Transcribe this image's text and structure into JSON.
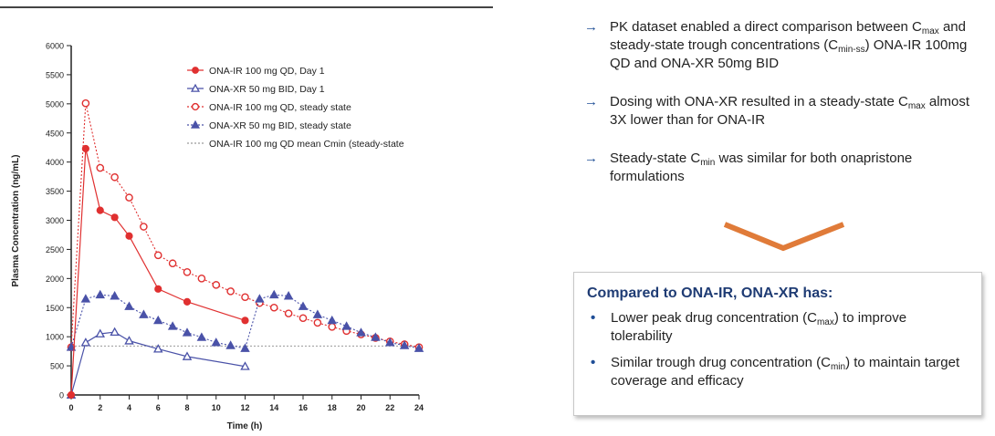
{
  "chart_data": {
    "type": "line",
    "xlabel": "Time (h)",
    "ylabel": "Plasma Concentration (ng/mL)",
    "xlim": [
      0,
      24
    ],
    "ylim": [
      0,
      6000
    ],
    "xticks": [
      "0",
      "2",
      "4",
      "6",
      "8",
      "10",
      "12",
      "14",
      "16",
      "18",
      "20",
      "22",
      "24"
    ],
    "yticks": [
      "0",
      "500",
      "1000",
      "1500",
      "2000",
      "2500",
      "3000",
      "3500",
      "4000",
      "4500",
      "5000",
      "5500",
      "6000"
    ],
    "grid": false,
    "legend_position": "top-right",
    "series": [
      {
        "name": "ONA-IR 100 mg QD, Day 1",
        "color": "#e03030",
        "marker": "filled-circle",
        "line": "solid",
        "x": [
          0,
          1,
          2,
          3,
          4,
          6,
          8,
          12
        ],
        "y": [
          0,
          4230,
          3170,
          3050,
          2730,
          1820,
          1600,
          1280
        ]
      },
      {
        "name": "ONA-XR 50 mg BID, Day 1",
        "color": "#4a52a8",
        "marker": "open-triangle",
        "line": "solid",
        "x": [
          0,
          1,
          2,
          3,
          4,
          6,
          8,
          12
        ],
        "y": [
          0,
          900,
          1050,
          1080,
          930,
          790,
          660,
          490
        ]
      },
      {
        "name": "ONA-IR 100 mg QD, steady state",
        "color": "#e03030",
        "marker": "open-circle",
        "line": "dotted",
        "x": [
          0,
          1,
          2,
          3,
          4,
          5,
          6,
          7,
          8,
          9,
          10,
          11,
          12,
          13,
          14,
          15,
          16,
          17,
          18,
          19,
          20,
          21,
          22,
          23,
          24
        ],
        "y": [
          820,
          5010,
          3900,
          3740,
          3390,
          2890,
          2400,
          2260,
          2110,
          2000,
          1890,
          1780,
          1680,
          1580,
          1500,
          1400,
          1320,
          1240,
          1170,
          1100,
          1040,
          980,
          920,
          870,
          820
        ]
      },
      {
        "name": "ONA-XR 50 mg BID, steady state",
        "color": "#4a52a8",
        "marker": "filled-triangle",
        "line": "dotted",
        "x": [
          0,
          1,
          2,
          3,
          4,
          5,
          6,
          7,
          8,
          9,
          10,
          11,
          12,
          13,
          14,
          15,
          16,
          17,
          18,
          19,
          20,
          21,
          22,
          23,
          24
        ],
        "y": [
          820,
          1650,
          1720,
          1700,
          1520,
          1380,
          1280,
          1180,
          1070,
          990,
          900,
          850,
          800,
          1650,
          1720,
          1700,
          1520,
          1380,
          1280,
          1180,
          1070,
          990,
          900,
          850,
          800
        ]
      },
      {
        "name": "ONA-IR 100 mg QD mean Cmin (steady-state",
        "color": "#9a9a9a",
        "marker": "none",
        "line": "dotted",
        "x": [
          0,
          24
        ],
        "y": [
          840,
          840
        ]
      }
    ]
  },
  "bullets": [
    {
      "pre": "PK dataset enabled a direct comparison between C",
      "sub1": "max",
      "mid": " and steady-state trough concentrations (C",
      "sub2": "min-ss",
      "post": ") ONA-IR 100mg QD and ONA-XR 50mg BID"
    },
    {
      "pre": "Dosing with ONA-XR resulted in a steady-state C",
      "sub1": "max",
      "mid": " almost 3X lower than for ONA-IR",
      "sub2": "",
      "post": ""
    },
    {
      "pre": "Steady-state C",
      "sub1": "min",
      "mid": " was similar for both onapristone formulations",
      "sub2": "",
      "post": ""
    }
  ],
  "arrow_glyph": "→",
  "summary": {
    "title": "Compared to ONA-IR, ONA-XR has:",
    "items": [
      {
        "pre": "Lower peak drug concentration (C",
        "sub": "max",
        "post": ") to improve tolerability"
      },
      {
        "pre": "Similar trough drug concentration (C",
        "sub": "min",
        "post": ") to maintain target coverage and efficacy"
      }
    ]
  },
  "colors": {
    "accent_blue": "#1f4e96",
    "title_blue": "#1f3c74",
    "chevron": "#e07b39"
  }
}
